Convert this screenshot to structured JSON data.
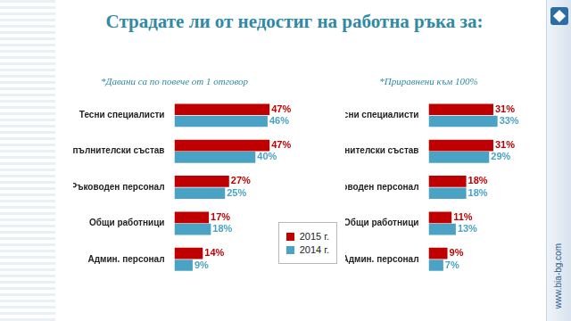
{
  "title": "Страдате ли от недостиг на работна ръка за:",
  "website": "www.bia-bg.com",
  "chart_data": [
    {
      "type": "bar",
      "orientation": "horizontal",
      "subtitle": "*Давани са по повече от 1 отговор",
      "categories": [
        "Тесни специалисти",
        "Изпълнителски състав",
        "Ръководен персонал",
        "Общи работници",
        "Админ. персонал"
      ],
      "series": [
        {
          "name": "2015 г.",
          "color": "#c00000",
          "values": [
            47,
            47,
            27,
            17,
            14
          ],
          "value_labels": [
            "47%",
            "47%",
            "27%",
            "17%",
            "14%"
          ]
        },
        {
          "name": "2014 г.",
          "color": "#4aa3c4",
          "values": [
            46,
            40,
            25,
            18,
            9
          ],
          "value_labels": [
            "46%",
            "40%",
            "25%",
            "18%",
            "9%"
          ]
        }
      ],
      "data_labels": true,
      "tick_labels": "y",
      "grid": false,
      "legend": "lower right"
    },
    {
      "type": "bar",
      "orientation": "horizontal",
      "subtitle": "*Приравнени към 100%",
      "categories": [
        "Тесни специалисти",
        "Изпълнителски състав",
        "Ръководен персонал",
        "Общи работници",
        "Админ. персонал"
      ],
      "series": [
        {
          "name": "2015 г.",
          "color": "#c00000",
          "values": [
            31,
            31,
            18,
            11,
            9
          ],
          "value_labels": [
            "31%",
            "31%",
            "18%",
            "11%",
            "9%"
          ]
        },
        {
          "name": "2014 г.",
          "color": "#4aa3c4",
          "values": [
            33,
            29,
            18,
            13,
            7
          ],
          "value_labels": [
            "33%",
            "29%",
            "18%",
            "13%",
            "7%"
          ]
        }
      ],
      "data_labels": true,
      "tick_labels": "y",
      "grid": false
    }
  ]
}
